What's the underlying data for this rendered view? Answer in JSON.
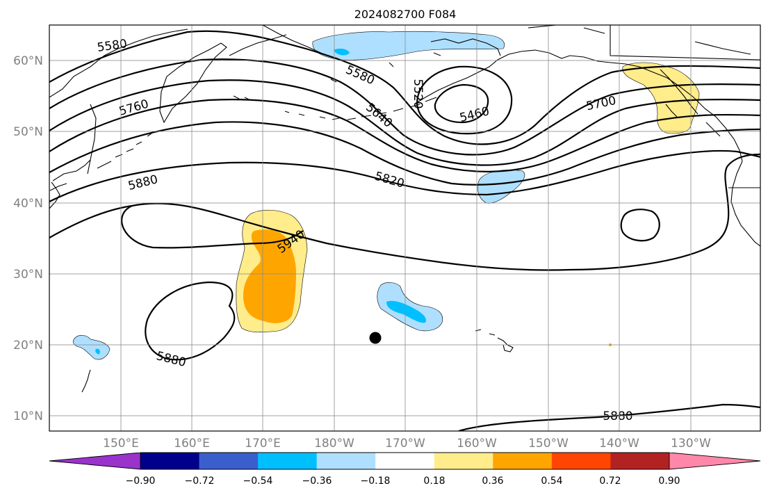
{
  "title": "2024082700 F084",
  "lat_labels": [
    "60°N",
    "50°N",
    "40°N",
    "30°N",
    "20°N",
    "10°N"
  ],
  "lon_labels": [
    "150°E",
    "160°E",
    "170°E",
    "180°W",
    "170°W",
    "160°W",
    "150°W",
    "140°W",
    "130°W"
  ],
  "contour_labels": [
    "5580",
    "5580",
    "5520",
    "5640",
    "5460",
    "5760",
    "5700",
    "5820",
    "5880",
    "5940",
    "5880",
    "5880"
  ],
  "colorbar": {
    "tick_labels": [
      "−0.90",
      "−0.72",
      "−0.54",
      "−0.36",
      "−0.18",
      "0.18",
      "0.36",
      "0.54",
      "0.72",
      "0.90"
    ],
    "colors": [
      "#9933cc",
      "#00008b",
      "#3a5fcd",
      "#00bfff",
      "#afdfff",
      "#ffffff",
      "#ffec8b",
      "#ffa500",
      "#ff4500",
      "#b22222",
      "#ff88aa"
    ]
  },
  "shading_colors": {
    "light_blue": "#afdfff",
    "blue": "#00bfff",
    "light_yellow": "#ffec8b",
    "orange": "#ffa500"
  }
}
